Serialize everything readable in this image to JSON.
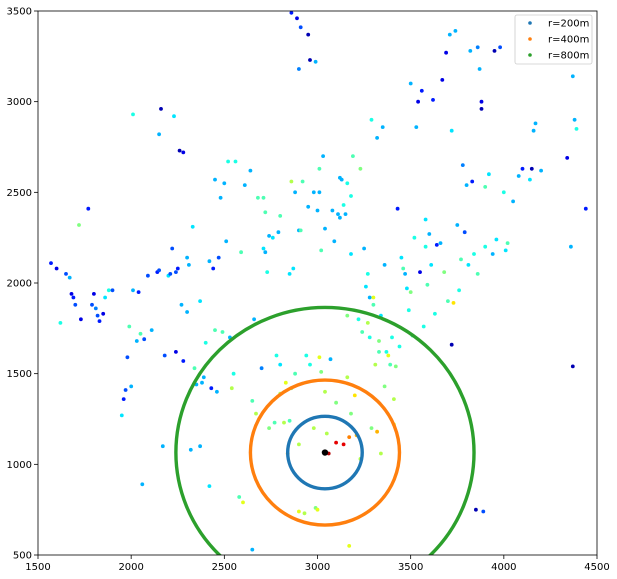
{
  "chart_data": {
    "type": "scatter",
    "title": "",
    "xlabel": "",
    "ylabel": "",
    "xlim": [
      1500,
      4500
    ],
    "ylim": [
      500,
      3500
    ],
    "xticks": [
      1500,
      2000,
      2500,
      3000,
      3500,
      4000,
      4500
    ],
    "yticks": [
      500,
      1000,
      1500,
      2000,
      2500,
      3000,
      3500
    ],
    "grid": false,
    "legend_position": "upper-right",
    "center": {
      "x": 3040,
      "y": 1065
    },
    "series": [
      {
        "name": "r=200m",
        "color": "#1f77b4",
        "radius": 200
      },
      {
        "name": "r=400m",
        "color": "#ff7f0e",
        "radius": 400
      },
      {
        "name": "r=800m",
        "color": "#2ca02c",
        "radius": 800
      }
    ],
    "points": [
      [
        1570,
        2110,
        0.15
      ],
      [
        1600,
        2080,
        0.1
      ],
      [
        1620,
        1780,
        0.4
      ],
      [
        1650,
        2050,
        0.2
      ],
      [
        1670,
        2030,
        0.3
      ],
      [
        1680,
        1940,
        0.1
      ],
      [
        1690,
        1920,
        0.15
      ],
      [
        1700,
        1880,
        0.2
      ],
      [
        1720,
        2320,
        0.5
      ],
      [
        1730,
        1800,
        0.1
      ],
      [
        1770,
        2410,
        0.15
      ],
      [
        1790,
        1880,
        0.2
      ],
      [
        1800,
        1940,
        0.1
      ],
      [
        1810,
        1860,
        0.25
      ],
      [
        1820,
        1820,
        0.2
      ],
      [
        1830,
        1790,
        0.15
      ],
      [
        1850,
        1830,
        0.1
      ],
      [
        1860,
        1920,
        0.35
      ],
      [
        1880,
        1960,
        0.4
      ],
      [
        1900,
        1960,
        0.2
      ],
      [
        1950,
        1270,
        0.35
      ],
      [
        1960,
        1360,
        0.15
      ],
      [
        1970,
        1410,
        0.2
      ],
      [
        1980,
        1590,
        0.2
      ],
      [
        1990,
        1760,
        0.45
      ],
      [
        2000,
        1430,
        0.3
      ],
      [
        2010,
        1960,
        0.3
      ],
      [
        2010,
        2930,
        0.4
      ],
      [
        2030,
        1680,
        0.3
      ],
      [
        2040,
        1950,
        0.15
      ],
      [
        2050,
        1720,
        0.45
      ],
      [
        2060,
        890,
        0.3
      ],
      [
        2070,
        1690,
        0.2
      ],
      [
        2090,
        2040,
        0.2
      ],
      [
        2110,
        1740,
        0.3
      ],
      [
        2140,
        2060,
        0.15
      ],
      [
        2150,
        2820,
        0.3
      ],
      [
        2150,
        2070,
        0.2
      ],
      [
        2160,
        2960,
        0.05
      ],
      [
        2170,
        1100,
        0.3
      ],
      [
        2180,
        1600,
        0.2
      ],
      [
        2200,
        2040,
        0.35
      ],
      [
        2210,
        2050,
        0.2
      ],
      [
        2220,
        2190,
        0.2
      ],
      [
        2230,
        2920,
        0.35
      ],
      [
        2240,
        1620,
        0.1
      ],
      [
        2240,
        2060,
        0.2
      ],
      [
        2250,
        2080,
        0.15
      ],
      [
        2260,
        2730,
        0.05
      ],
      [
        2270,
        1880,
        0.3
      ],
      [
        2280,
        1570,
        0.15
      ],
      [
        2280,
        2720,
        0.1
      ],
      [
        2300,
        1840,
        0.3
      ],
      [
        2300,
        2140,
        0.3
      ],
      [
        2310,
        2100,
        0.3
      ],
      [
        2320,
        1080,
        0.3
      ],
      [
        2330,
        2310,
        0.35
      ],
      [
        2340,
        1530,
        0.45
      ],
      [
        2350,
        1440,
        0.3
      ],
      [
        2370,
        1100,
        0.3
      ],
      [
        2370,
        1900,
        0.35
      ],
      [
        2380,
        1450,
        0.3
      ],
      [
        2390,
        1480,
        0.3
      ],
      [
        2400,
        1670,
        0.4
      ],
      [
        2420,
        880,
        0.35
      ],
      [
        2420,
        2120,
        0.3
      ],
      [
        2430,
        1420,
        0.15
      ],
      [
        2440,
        2080,
        0.15
      ],
      [
        2450,
        1740,
        0.45
      ],
      [
        2450,
        2570,
        0.3
      ],
      [
        2460,
        1400,
        0.3
      ],
      [
        2470,
        2140,
        0.2
      ],
      [
        2480,
        2470,
        0.3
      ],
      [
        2490,
        1730,
        0.45
      ],
      [
        2500,
        2550,
        0.3
      ],
      [
        2510,
        2230,
        0.3
      ],
      [
        2520,
        2670,
        0.4
      ],
      [
        2530,
        1700,
        0.3
      ],
      [
        2540,
        1420,
        0.55
      ],
      [
        2550,
        1500,
        0.4
      ],
      [
        2560,
        2670,
        0.4
      ],
      [
        2580,
        820,
        0.45
      ],
      [
        2590,
        2170,
        0.45
      ],
      [
        2600,
        790,
        0.6
      ],
      [
        2610,
        2540,
        0.3
      ],
      [
        2640,
        2620,
        0.3
      ],
      [
        2650,
        1350,
        0.45
      ],
      [
        2650,
        530,
        0.3
      ],
      [
        2660,
        1800,
        0.3
      ],
      [
        2670,
        1280,
        0.55
      ],
      [
        2680,
        2470,
        0.45
      ],
      [
        2700,
        1530,
        0.25
      ],
      [
        2710,
        2190,
        0.35
      ],
      [
        2710,
        2470,
        0.45
      ],
      [
        2720,
        2170,
        0.3
      ],
      [
        2720,
        2390,
        0.45
      ],
      [
        2730,
        2060,
        0.4
      ],
      [
        2740,
        1200,
        0.5
      ],
      [
        2740,
        2260,
        0.3
      ],
      [
        2760,
        2250,
        0.35
      ],
      [
        2770,
        1230,
        0.45
      ],
      [
        2780,
        1600,
        0.4
      ],
      [
        2790,
        2280,
        0.3
      ],
      [
        2800,
        1550,
        0.35
      ],
      [
        2800,
        2370,
        0.45
      ],
      [
        2800,
        1390,
        0.55
      ],
      [
        2820,
        1230,
        0.55
      ],
      [
        2830,
        1450,
        0.6
      ],
      [
        2840,
        1060,
        0.7
      ],
      [
        2850,
        2050,
        0.35
      ],
      [
        2850,
        1240,
        0.45
      ],
      [
        2860,
        3490,
        0.15
      ],
      [
        2860,
        1420,
        0.5
      ],
      [
        2860,
        2560,
        0.55
      ],
      [
        2870,
        2080,
        0.35
      ],
      [
        2880,
        1500,
        0.45
      ],
      [
        2880,
        2500,
        0.3
      ],
      [
        2890,
        3460,
        0.1
      ],
      [
        2900,
        2290,
        0.3
      ],
      [
        2900,
        3180,
        0.25
      ],
      [
        2900,
        1110,
        0.55
      ],
      [
        2900,
        740,
        0.6
      ],
      [
        2910,
        3410,
        0.2
      ],
      [
        2910,
        2290,
        0.45
      ],
      [
        2920,
        2560,
        0.45
      ],
      [
        2930,
        730,
        0.55
      ],
      [
        2940,
        1600,
        0.4
      ],
      [
        2950,
        3370,
        0.05
      ],
      [
        2950,
        2420,
        0.3
      ],
      [
        2960,
        3230,
        0.05
      ],
      [
        2960,
        1550,
        0.4
      ],
      [
        2980,
        2500,
        0.3
      ],
      [
        2980,
        1200,
        0.55
      ],
      [
        2990,
        3220,
        0.3
      ],
      [
        2990,
        760,
        0.5
      ],
      [
        3000,
        2400,
        0.3
      ],
      [
        3000,
        750,
        0.6
      ],
      [
        3010,
        2500,
        0.3
      ],
      [
        3010,
        1590,
        0.6
      ],
      [
        3010,
        2630,
        0.45
      ],
      [
        3020,
        1510,
        0.5
      ],
      [
        3020,
        2180,
        0.45
      ],
      [
        3030,
        2700,
        0.3
      ],
      [
        3040,
        1400,
        0.55
      ],
      [
        3040,
        2300,
        0.3
      ],
      [
        3050,
        1170,
        0.55
      ],
      [
        3060,
        1060,
        0.95
      ],
      [
        3070,
        1580,
        0.3
      ],
      [
        3080,
        2400,
        0.3
      ],
      [
        3090,
        2230,
        0.3
      ],
      [
        3100,
        1120,
        0.9
      ],
      [
        3100,
        1340,
        0.5
      ],
      [
        3110,
        2380,
        0.3
      ],
      [
        3120,
        2580,
        0.3
      ],
      [
        3120,
        2360,
        0.3
      ],
      [
        3130,
        2570,
        0.3
      ],
      [
        3140,
        2430,
        0.4
      ],
      [
        3140,
        1110,
        0.9
      ],
      [
        3150,
        2380,
        0.3
      ],
      [
        3160,
        1480,
        0.55
      ],
      [
        3160,
        1820,
        0.5
      ],
      [
        3160,
        2550,
        0.4
      ],
      [
        3170,
        1150,
        0.75
      ],
      [
        3170,
        550,
        0.6
      ],
      [
        3180,
        2480,
        0.4
      ],
      [
        3180,
        2160,
        0.35
      ],
      [
        3180,
        1280,
        0.5
      ],
      [
        3190,
        2700,
        0.45
      ],
      [
        3200,
        1380,
        0.65
      ],
      [
        3210,
        1160,
        0.7
      ],
      [
        3220,
        1800,
        0.4
      ],
      [
        3230,
        2630,
        0.5
      ],
      [
        3230,
        1030,
        0.55
      ],
      [
        3240,
        1730,
        0.45
      ],
      [
        3250,
        2190,
        0.3
      ],
      [
        3260,
        1980,
        0.35
      ],
      [
        3270,
        2050,
        0.4
      ],
      [
        3270,
        1780,
        0.55
      ],
      [
        3280,
        1920,
        0.3
      ],
      [
        3280,
        1700,
        0.4
      ],
      [
        3290,
        2900,
        0.4
      ],
      [
        3290,
        1200,
        0.5
      ],
      [
        3300,
        1880,
        0.45
      ],
      [
        3300,
        1920,
        0.6
      ],
      [
        3310,
        1550,
        0.55
      ],
      [
        3320,
        2800,
        0.3
      ],
      [
        3320,
        1180,
        0.7
      ],
      [
        3330,
        1620,
        0.45
      ],
      [
        3330,
        1680,
        0.5
      ],
      [
        3340,
        1060,
        0.55
      ],
      [
        3340,
        1820,
        0.35
      ],
      [
        3350,
        2860,
        0.3
      ],
      [
        3360,
        2100,
        0.3
      ],
      [
        3360,
        1430,
        0.5
      ],
      [
        3370,
        1620,
        0.4
      ],
      [
        3380,
        1600,
        0.6
      ],
      [
        3390,
        1550,
        0.45
      ],
      [
        3400,
        1700,
        0.4
      ],
      [
        3410,
        1360,
        0.55
      ],
      [
        3410,
        1220,
        0.6
      ],
      [
        3420,
        1540,
        0.5
      ],
      [
        3430,
        2410,
        0.15
      ],
      [
        3440,
        1650,
        0.4
      ],
      [
        3450,
        2140,
        0.35
      ],
      [
        3460,
        2080,
        0.45
      ],
      [
        3470,
        2050,
        0.3
      ],
      [
        3480,
        1970,
        0.35
      ],
      [
        3490,
        1850,
        0.4
      ],
      [
        3500,
        1950,
        0.5
      ],
      [
        3500,
        3100,
        0.3
      ],
      [
        3510,
        1710,
        0.45
      ],
      [
        3520,
        2250,
        0.4
      ],
      [
        3530,
        2860,
        0.3
      ],
      [
        3540,
        3000,
        0.1
      ],
      [
        3550,
        2060,
        0.1
      ],
      [
        3560,
        3060,
        0.15
      ],
      [
        3570,
        1760,
        0.4
      ],
      [
        3580,
        2350,
        0.35
      ],
      [
        3580,
        2200,
        0.4
      ],
      [
        3590,
        1990,
        0.45
      ],
      [
        3600,
        2270,
        0.3
      ],
      [
        3610,
        2100,
        0.35
      ],
      [
        3620,
        3010,
        0.15
      ],
      [
        3630,
        1830,
        0.4
      ],
      [
        3640,
        2210,
        0.15
      ],
      [
        3660,
        2220,
        0.3
      ],
      [
        3670,
        3120,
        0.1
      ],
      [
        3680,
        2060,
        0.5
      ],
      [
        3690,
        3270,
        0.1
      ],
      [
        3700,
        1900,
        0.45
      ],
      [
        3710,
        3370,
        0.3
      ],
      [
        3720,
        1660,
        0.05
      ],
      [
        3720,
        2840,
        0.35
      ],
      [
        3730,
        1890,
        0.65
      ],
      [
        3740,
        3390,
        0.3
      ],
      [
        3750,
        2320,
        0.3
      ],
      [
        3760,
        1960,
        0.4
      ],
      [
        3770,
        2130,
        0.45
      ],
      [
        3780,
        2650,
        0.25
      ],
      [
        3790,
        2280,
        0.2
      ],
      [
        3800,
        2540,
        0.3
      ],
      [
        3810,
        2100,
        0.35
      ],
      [
        3820,
        3280,
        0.3
      ],
      [
        3830,
        2560,
        0.15
      ],
      [
        3840,
        2160,
        0.4
      ],
      [
        3850,
        750,
        0.05
      ],
      [
        3860,
        3300,
        0.25
      ],
      [
        3860,
        2050,
        0.45
      ],
      [
        3870,
        3180,
        0.3
      ],
      [
        3880,
        2960,
        0.05
      ],
      [
        3880,
        3000,
        0.1
      ],
      [
        3890,
        740,
        0.2
      ],
      [
        3900,
        2530,
        0.45
      ],
      [
        3900,
        2200,
        0.4
      ],
      [
        3920,
        2600,
        0.35
      ],
      [
        3940,
        2160,
        0.3
      ],
      [
        3950,
        3280,
        0.05
      ],
      [
        3960,
        2240,
        0.35
      ],
      [
        3980,
        3300,
        0.2
      ],
      [
        4000,
        2500,
        0.4
      ],
      [
        4010,
        2180,
        0.35
      ],
      [
        4020,
        2220,
        0.45
      ],
      [
        4050,
        2450,
        0.3
      ],
      [
        4080,
        2590,
        0.3
      ],
      [
        4100,
        2630,
        0.15
      ],
      [
        4140,
        2570,
        0.35
      ],
      [
        4150,
        2630,
        0.05
      ],
      [
        4160,
        2840,
        0.3
      ],
      [
        4170,
        2880,
        0.3
      ],
      [
        4200,
        2620,
        0.3
      ],
      [
        4340,
        2690,
        0.1
      ],
      [
        4360,
        2200,
        0.3
      ],
      [
        4370,
        3140,
        0.3
      ],
      [
        4370,
        1540,
        0.05
      ],
      [
        4380,
        2900,
        0.3
      ],
      [
        4390,
        2850,
        0.4
      ],
      [
        4440,
        2410,
        0.15
      ]
    ]
  }
}
